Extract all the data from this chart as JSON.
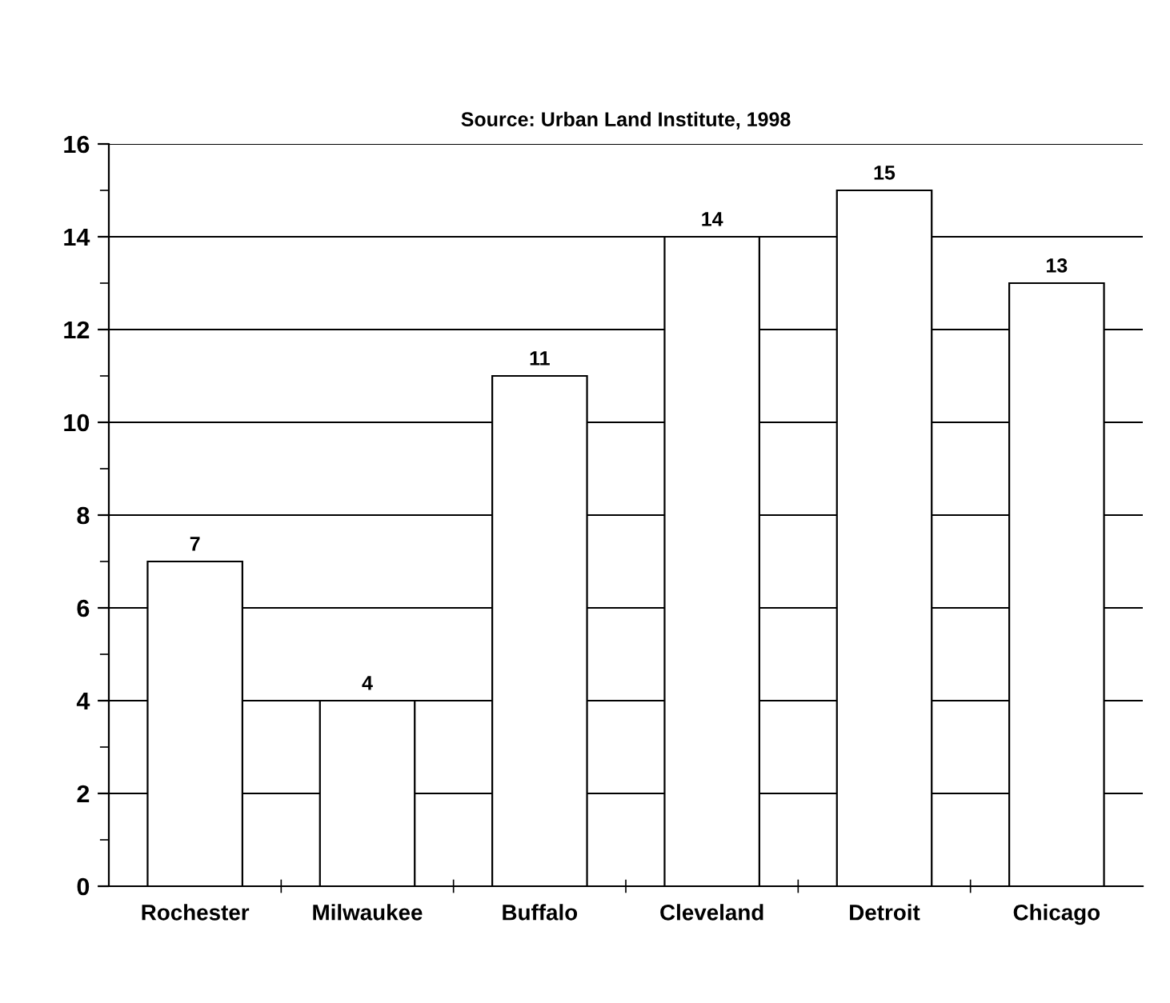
{
  "chart_data": {
    "type": "bar",
    "title": "Source: Urban Land Institute, 1998",
    "categories": [
      "Rochester",
      "Milwaukee",
      "Buffalo",
      "Cleveland",
      "Detroit",
      "Chicago"
    ],
    "values": [
      7,
      4,
      11,
      14,
      15,
      13
    ],
    "color": "#ffffff",
    "ylim": [
      0,
      16
    ],
    "yticks": [
      0,
      2,
      4,
      6,
      8,
      10,
      12,
      14,
      16
    ],
    "grid": "y",
    "data_labels": true
  }
}
